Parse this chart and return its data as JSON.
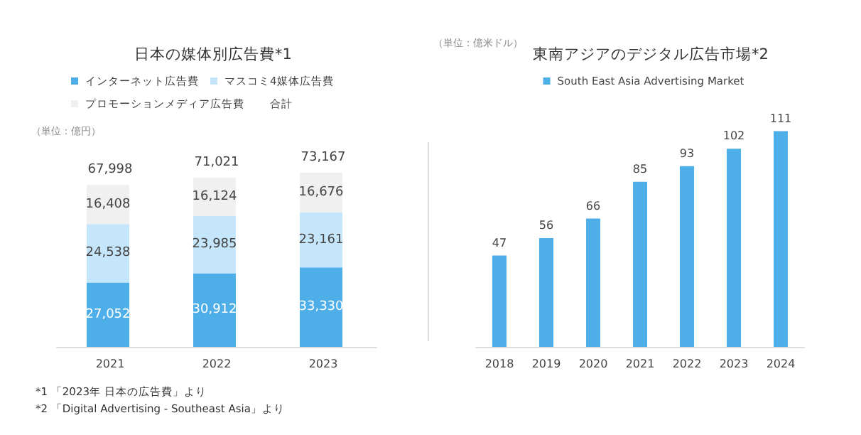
{
  "chart_data": [
    {
      "type": "bar",
      "title": "日本の媒体別広告費*1",
      "ylabel": "（単位：億円）",
      "categories": [
        "2021",
        "2022",
        "2023"
      ],
      "stacked": true,
      "legend": "top",
      "series": [
        {
          "name": "インターネット広告費",
          "color": "#4eaee8",
          "values": [
            27052,
            30912,
            33330
          ],
          "value_labels": [
            "27,052",
            "30,912",
            "33,330"
          ]
        },
        {
          "name": "マスコミ4媒体広告費",
          "color": "#c5e6fa",
          "values": [
            24538,
            23985,
            23161
          ],
          "value_labels": [
            "24,538",
            "23,985",
            "23,161"
          ]
        },
        {
          "name": "プロモーションメディア広告費",
          "color": "#f0f0f0",
          "values": [
            16408,
            16124,
            16676
          ],
          "value_labels": [
            "16,408",
            "16,124",
            "16,676"
          ]
        }
      ],
      "totals": [
        "67,998",
        "71,021",
        "73,167"
      ],
      "annotations": [
        "合計",
        "*1 「2023年 日本の広告費」より"
      ]
    },
    {
      "type": "bar",
      "title": "東南アジアのデジタル広告市場*2",
      "ylabel": "（単位：億米ドル）",
      "categories": [
        "2018",
        "2019",
        "2020",
        "2021",
        "2022",
        "2023",
        "2024"
      ],
      "data_labels": true,
      "legend": "top",
      "series": [
        {
          "name": "South East Asia Advertising Market",
          "color": "#4eaee8",
          "values": [
            47,
            56,
            66,
            85,
            93,
            102,
            111
          ]
        }
      ],
      "annotations": [
        "*2 「Digital Advertising - Southeast Asia」より"
      ]
    }
  ]
}
